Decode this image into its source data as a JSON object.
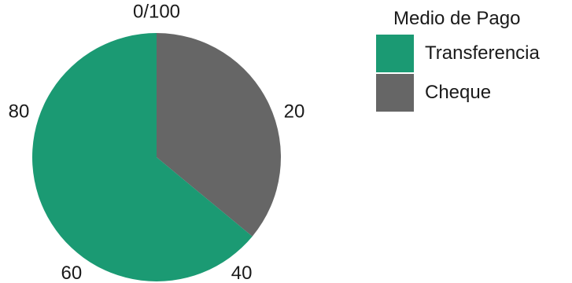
{
  "chart_data": {
    "type": "pie",
    "scale_type": "percent",
    "slices": [
      {
        "label": "Cheque",
        "value": 36,
        "color": "#666666"
      },
      {
        "label": "Transferencia",
        "value": 64,
        "color": "#1b9a73"
      }
    ],
    "tick_labels": [
      "0/100",
      "20",
      "40",
      "60",
      "80"
    ],
    "tick_values": [
      0,
      20,
      40,
      60,
      80
    ],
    "legend": {
      "title": "Medio de Pago",
      "placement": "right",
      "items": [
        {
          "label": "Transferencia",
          "color": "#1b9a73"
        },
        {
          "label": "Cheque",
          "color": "#666666"
        }
      ]
    }
  }
}
